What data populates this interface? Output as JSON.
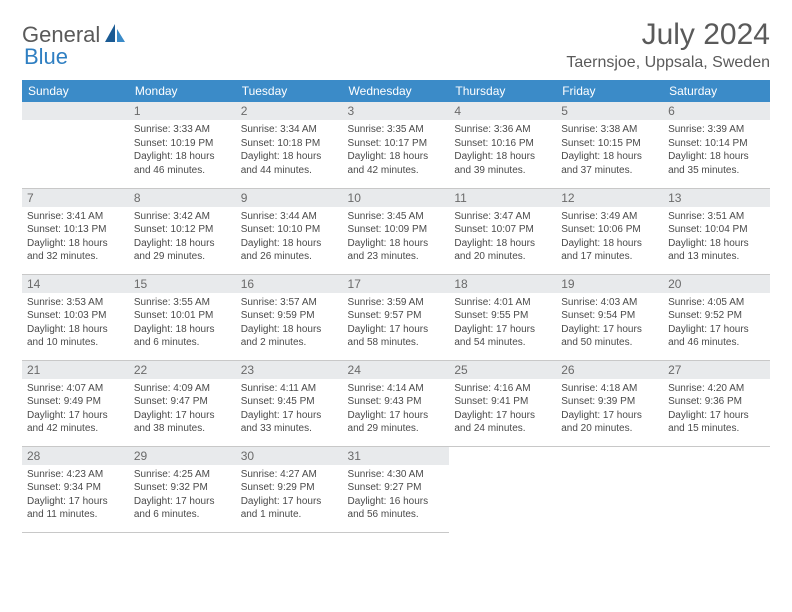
{
  "logo": {
    "word1": "General",
    "word2": "Blue"
  },
  "header": {
    "title": "July 2024",
    "location": "Taernsjoe, Uppsala, Sweden"
  },
  "colors": {
    "header_bg": "#3b8bc8",
    "header_text": "#ffffff",
    "daynum_bg": "#e8eaec",
    "daynum_text": "#6a6a6a",
    "body_text": "#4a4a4a",
    "rule": "#c8c8c8",
    "logo_gray": "#5a5a5a",
    "logo_blue": "#2f7fc2"
  },
  "columns": [
    "Sunday",
    "Monday",
    "Tuesday",
    "Wednesday",
    "Thursday",
    "Friday",
    "Saturday"
  ],
  "weeks": [
    [
      {
        "blank": true
      },
      {
        "day": "1",
        "sunrise": "Sunrise: 3:33 AM",
        "sunset": "Sunset: 10:19 PM",
        "dl1": "Daylight: 18 hours",
        "dl2": "and 46 minutes."
      },
      {
        "day": "2",
        "sunrise": "Sunrise: 3:34 AM",
        "sunset": "Sunset: 10:18 PM",
        "dl1": "Daylight: 18 hours",
        "dl2": "and 44 minutes."
      },
      {
        "day": "3",
        "sunrise": "Sunrise: 3:35 AM",
        "sunset": "Sunset: 10:17 PM",
        "dl1": "Daylight: 18 hours",
        "dl2": "and 42 minutes."
      },
      {
        "day": "4",
        "sunrise": "Sunrise: 3:36 AM",
        "sunset": "Sunset: 10:16 PM",
        "dl1": "Daylight: 18 hours",
        "dl2": "and 39 minutes."
      },
      {
        "day": "5",
        "sunrise": "Sunrise: 3:38 AM",
        "sunset": "Sunset: 10:15 PM",
        "dl1": "Daylight: 18 hours",
        "dl2": "and 37 minutes."
      },
      {
        "day": "6",
        "sunrise": "Sunrise: 3:39 AM",
        "sunset": "Sunset: 10:14 PM",
        "dl1": "Daylight: 18 hours",
        "dl2": "and 35 minutes."
      }
    ],
    [
      {
        "day": "7",
        "sunrise": "Sunrise: 3:41 AM",
        "sunset": "Sunset: 10:13 PM",
        "dl1": "Daylight: 18 hours",
        "dl2": "and 32 minutes."
      },
      {
        "day": "8",
        "sunrise": "Sunrise: 3:42 AM",
        "sunset": "Sunset: 10:12 PM",
        "dl1": "Daylight: 18 hours",
        "dl2": "and 29 minutes."
      },
      {
        "day": "9",
        "sunrise": "Sunrise: 3:44 AM",
        "sunset": "Sunset: 10:10 PM",
        "dl1": "Daylight: 18 hours",
        "dl2": "and 26 minutes."
      },
      {
        "day": "10",
        "sunrise": "Sunrise: 3:45 AM",
        "sunset": "Sunset: 10:09 PM",
        "dl1": "Daylight: 18 hours",
        "dl2": "and 23 minutes."
      },
      {
        "day": "11",
        "sunrise": "Sunrise: 3:47 AM",
        "sunset": "Sunset: 10:07 PM",
        "dl1": "Daylight: 18 hours",
        "dl2": "and 20 minutes."
      },
      {
        "day": "12",
        "sunrise": "Sunrise: 3:49 AM",
        "sunset": "Sunset: 10:06 PM",
        "dl1": "Daylight: 18 hours",
        "dl2": "and 17 minutes."
      },
      {
        "day": "13",
        "sunrise": "Sunrise: 3:51 AM",
        "sunset": "Sunset: 10:04 PM",
        "dl1": "Daylight: 18 hours",
        "dl2": "and 13 minutes."
      }
    ],
    [
      {
        "day": "14",
        "sunrise": "Sunrise: 3:53 AM",
        "sunset": "Sunset: 10:03 PM",
        "dl1": "Daylight: 18 hours",
        "dl2": "and 10 minutes."
      },
      {
        "day": "15",
        "sunrise": "Sunrise: 3:55 AM",
        "sunset": "Sunset: 10:01 PM",
        "dl1": "Daylight: 18 hours",
        "dl2": "and 6 minutes."
      },
      {
        "day": "16",
        "sunrise": "Sunrise: 3:57 AM",
        "sunset": "Sunset: 9:59 PM",
        "dl1": "Daylight: 18 hours",
        "dl2": "and 2 minutes."
      },
      {
        "day": "17",
        "sunrise": "Sunrise: 3:59 AM",
        "sunset": "Sunset: 9:57 PM",
        "dl1": "Daylight: 17 hours",
        "dl2": "and 58 minutes."
      },
      {
        "day": "18",
        "sunrise": "Sunrise: 4:01 AM",
        "sunset": "Sunset: 9:55 PM",
        "dl1": "Daylight: 17 hours",
        "dl2": "and 54 minutes."
      },
      {
        "day": "19",
        "sunrise": "Sunrise: 4:03 AM",
        "sunset": "Sunset: 9:54 PM",
        "dl1": "Daylight: 17 hours",
        "dl2": "and 50 minutes."
      },
      {
        "day": "20",
        "sunrise": "Sunrise: 4:05 AM",
        "sunset": "Sunset: 9:52 PM",
        "dl1": "Daylight: 17 hours",
        "dl2": "and 46 minutes."
      }
    ],
    [
      {
        "day": "21",
        "sunrise": "Sunrise: 4:07 AM",
        "sunset": "Sunset: 9:49 PM",
        "dl1": "Daylight: 17 hours",
        "dl2": "and 42 minutes."
      },
      {
        "day": "22",
        "sunrise": "Sunrise: 4:09 AM",
        "sunset": "Sunset: 9:47 PM",
        "dl1": "Daylight: 17 hours",
        "dl2": "and 38 minutes."
      },
      {
        "day": "23",
        "sunrise": "Sunrise: 4:11 AM",
        "sunset": "Sunset: 9:45 PM",
        "dl1": "Daylight: 17 hours",
        "dl2": "and 33 minutes."
      },
      {
        "day": "24",
        "sunrise": "Sunrise: 4:14 AM",
        "sunset": "Sunset: 9:43 PM",
        "dl1": "Daylight: 17 hours",
        "dl2": "and 29 minutes."
      },
      {
        "day": "25",
        "sunrise": "Sunrise: 4:16 AM",
        "sunset": "Sunset: 9:41 PM",
        "dl1": "Daylight: 17 hours",
        "dl2": "and 24 minutes."
      },
      {
        "day": "26",
        "sunrise": "Sunrise: 4:18 AM",
        "sunset": "Sunset: 9:39 PM",
        "dl1": "Daylight: 17 hours",
        "dl2": "and 20 minutes."
      },
      {
        "day": "27",
        "sunrise": "Sunrise: 4:20 AM",
        "sunset": "Sunset: 9:36 PM",
        "dl1": "Daylight: 17 hours",
        "dl2": "and 15 minutes."
      }
    ],
    [
      {
        "day": "28",
        "sunrise": "Sunrise: 4:23 AM",
        "sunset": "Sunset: 9:34 PM",
        "dl1": "Daylight: 17 hours",
        "dl2": "and 11 minutes."
      },
      {
        "day": "29",
        "sunrise": "Sunrise: 4:25 AM",
        "sunset": "Sunset: 9:32 PM",
        "dl1": "Daylight: 17 hours",
        "dl2": "and 6 minutes."
      },
      {
        "day": "30",
        "sunrise": "Sunrise: 4:27 AM",
        "sunset": "Sunset: 9:29 PM",
        "dl1": "Daylight: 17 hours",
        "dl2": "and 1 minute."
      },
      {
        "day": "31",
        "sunrise": "Sunrise: 4:30 AM",
        "sunset": "Sunset: 9:27 PM",
        "dl1": "Daylight: 16 hours",
        "dl2": "and 56 minutes."
      },
      {
        "blank": true
      },
      {
        "blank": true
      },
      {
        "blank": true
      }
    ]
  ]
}
